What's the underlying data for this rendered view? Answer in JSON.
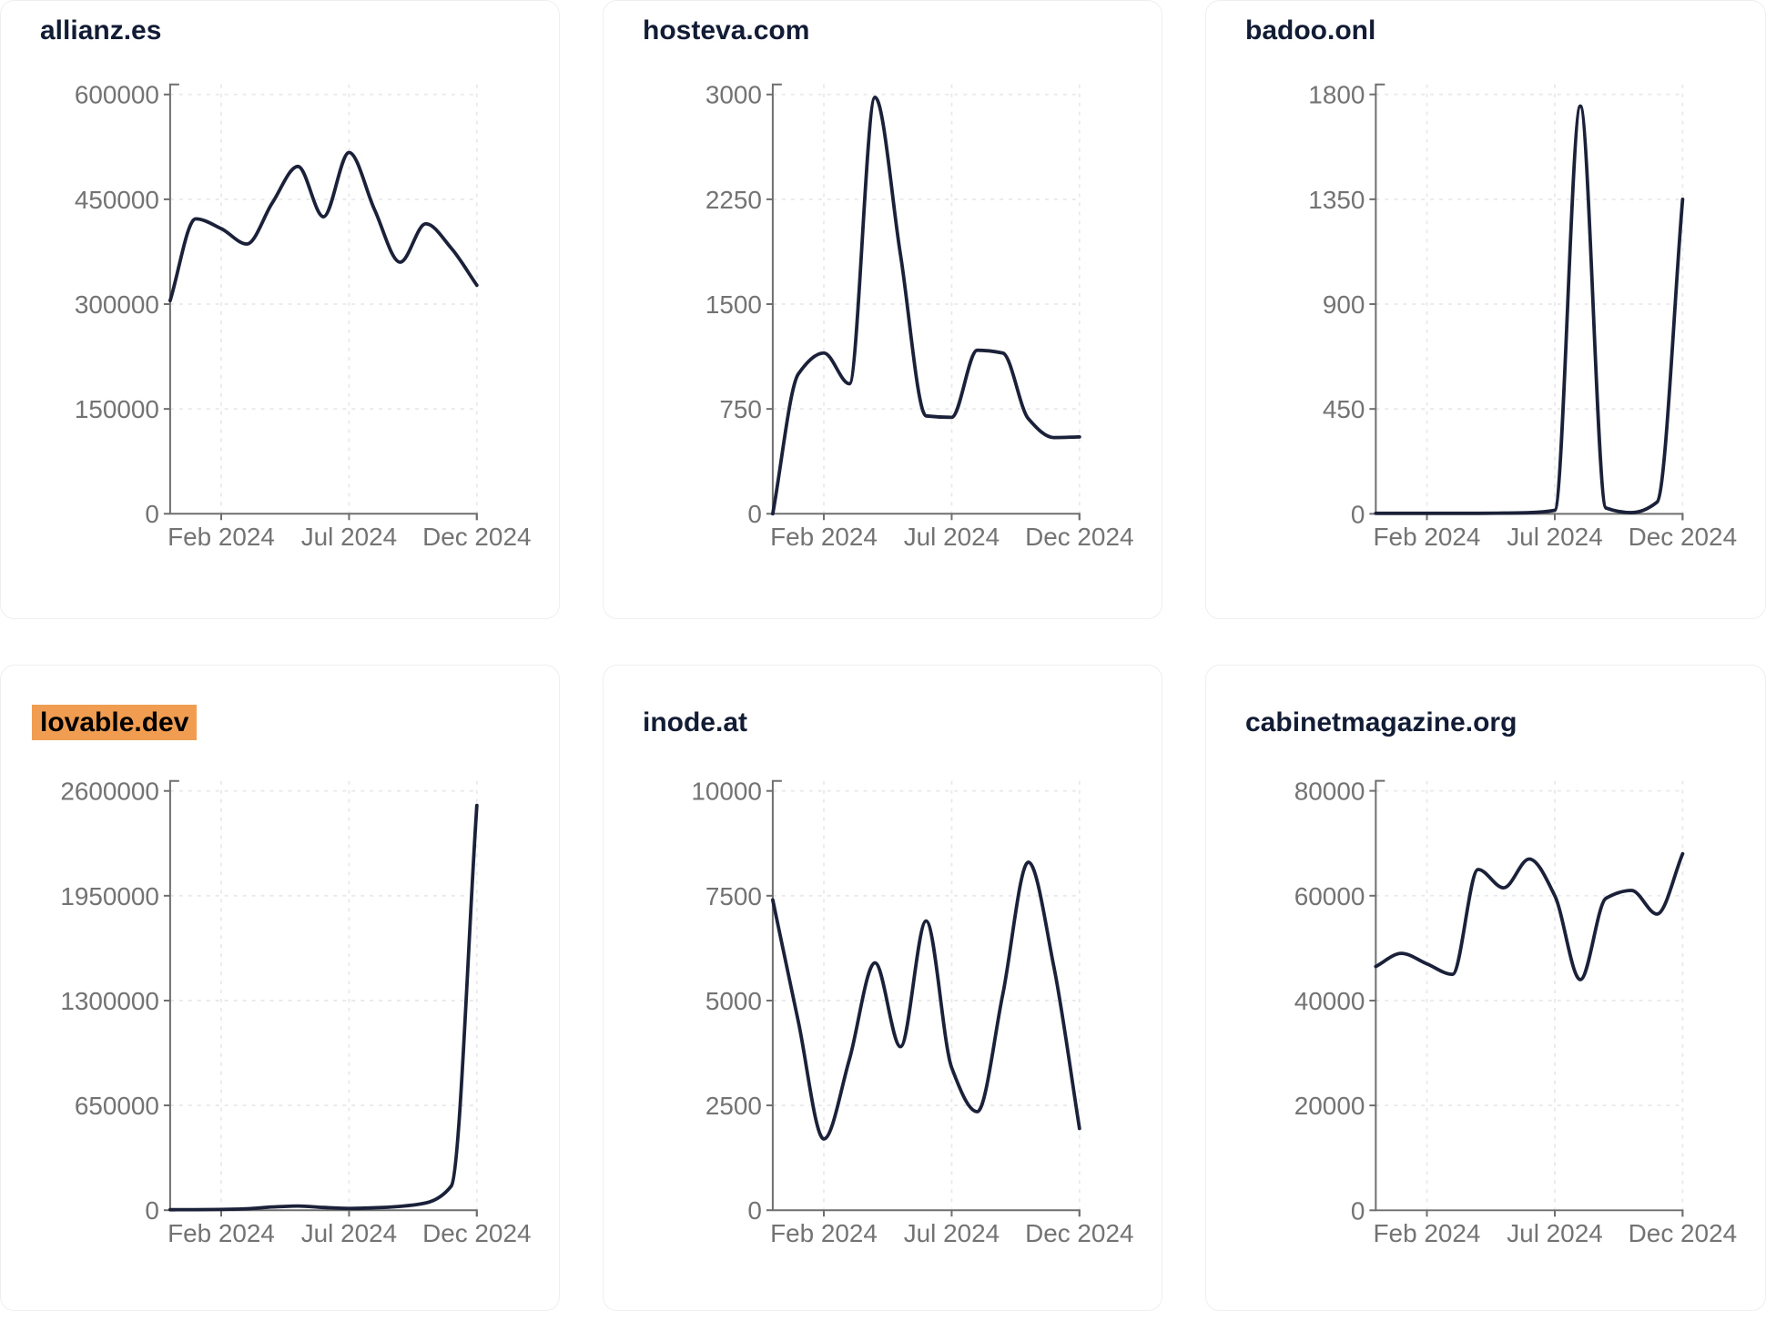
{
  "page": {
    "background": "#ffffff"
  },
  "colors": {
    "line": "#1b2139",
    "title": "#121c35",
    "tick_text": "#737373",
    "axis": "#6e6e6e",
    "grid": "#e8e9ec",
    "card_border": "#edeff2",
    "card_bg": "#ffffff",
    "highlight_bg": "#f09d51",
    "highlight_text": "#000000"
  },
  "chart_data": [
    {
      "type": "line",
      "title": "allianz.es",
      "title_highlight": false,
      "ylim": [
        0,
        600000
      ],
      "yticks": [
        0,
        150000,
        300000,
        450000,
        600000
      ],
      "x_tick_labels": [
        "Feb 2024",
        "Jul 2024",
        "Dec 2024"
      ],
      "x_tick_indices": [
        2,
        7,
        12
      ],
      "n_points": 13,
      "grid": true,
      "values": [
        305000,
        422000,
        408000,
        386000,
        445000,
        497000,
        425000,
        517000,
        435000,
        360000,
        415000,
        380000,
        327000
      ]
    },
    {
      "type": "line",
      "title": "hosteva.com",
      "title_highlight": false,
      "ylim": [
        0,
        3000
      ],
      "yticks": [
        0,
        750,
        1500,
        2250,
        3000
      ],
      "x_tick_labels": [
        "Feb 2024",
        "Jul 2024",
        "Dec 2024"
      ],
      "x_tick_indices": [
        2,
        7,
        12
      ],
      "n_points": 13,
      "grid": true,
      "values": [
        0,
        1000,
        1150,
        930,
        2980,
        1850,
        700,
        690,
        1170,
        1150,
        680,
        545,
        550
      ]
    },
    {
      "type": "line",
      "title": "badoo.onl",
      "title_highlight": false,
      "ylim": [
        0,
        1800
      ],
      "yticks": [
        0,
        450,
        900,
        1350,
        1800
      ],
      "x_tick_labels": [
        "Feb 2024",
        "Jul 2024",
        "Dec 2024"
      ],
      "x_tick_indices": [
        2,
        7,
        12
      ],
      "n_points": 13,
      "grid": true,
      "values": [
        2,
        2,
        2,
        2,
        2,
        3,
        5,
        15,
        1750,
        25,
        5,
        50,
        1350
      ]
    },
    {
      "type": "line",
      "title": "lovable.dev",
      "title_highlight": true,
      "ylim": [
        0,
        2600000
      ],
      "yticks": [
        0,
        650000,
        1300000,
        1950000,
        2600000
      ],
      "x_tick_labels": [
        "Feb 2024",
        "Jul 2024",
        "Dec 2024"
      ],
      "x_tick_indices": [
        2,
        7,
        12
      ],
      "n_points": 13,
      "grid": true,
      "values": [
        3000,
        3500,
        4500,
        9000,
        20000,
        26000,
        17000,
        11000,
        15000,
        24000,
        45000,
        150000,
        2510000
      ]
    },
    {
      "type": "line",
      "title": "inode.at",
      "title_highlight": false,
      "ylim": [
        0,
        10000
      ],
      "yticks": [
        0,
        2500,
        5000,
        7500,
        10000
      ],
      "x_tick_labels": [
        "Feb 2024",
        "Jul 2024",
        "Dec 2024"
      ],
      "x_tick_indices": [
        2,
        7,
        12
      ],
      "n_points": 13,
      "grid": true,
      "values": [
        7400,
        4500,
        1700,
        3600,
        5900,
        3900,
        6900,
        3400,
        2350,
        5150,
        8300,
        5800,
        1950
      ]
    },
    {
      "type": "line",
      "title": "cabinetmagazine.org",
      "title_highlight": false,
      "ylim": [
        0,
        80000
      ],
      "yticks": [
        0,
        20000,
        40000,
        60000,
        80000
      ],
      "x_tick_labels": [
        "Feb 2024",
        "Jul 2024",
        "Dec 2024"
      ],
      "x_tick_indices": [
        2,
        7,
        12
      ],
      "n_points": 13,
      "grid": true,
      "values": [
        46500,
        49000,
        47000,
        45000,
        65000,
        61500,
        67000,
        60000,
        44000,
        59500,
        61000,
        56500,
        68000
      ]
    }
  ]
}
